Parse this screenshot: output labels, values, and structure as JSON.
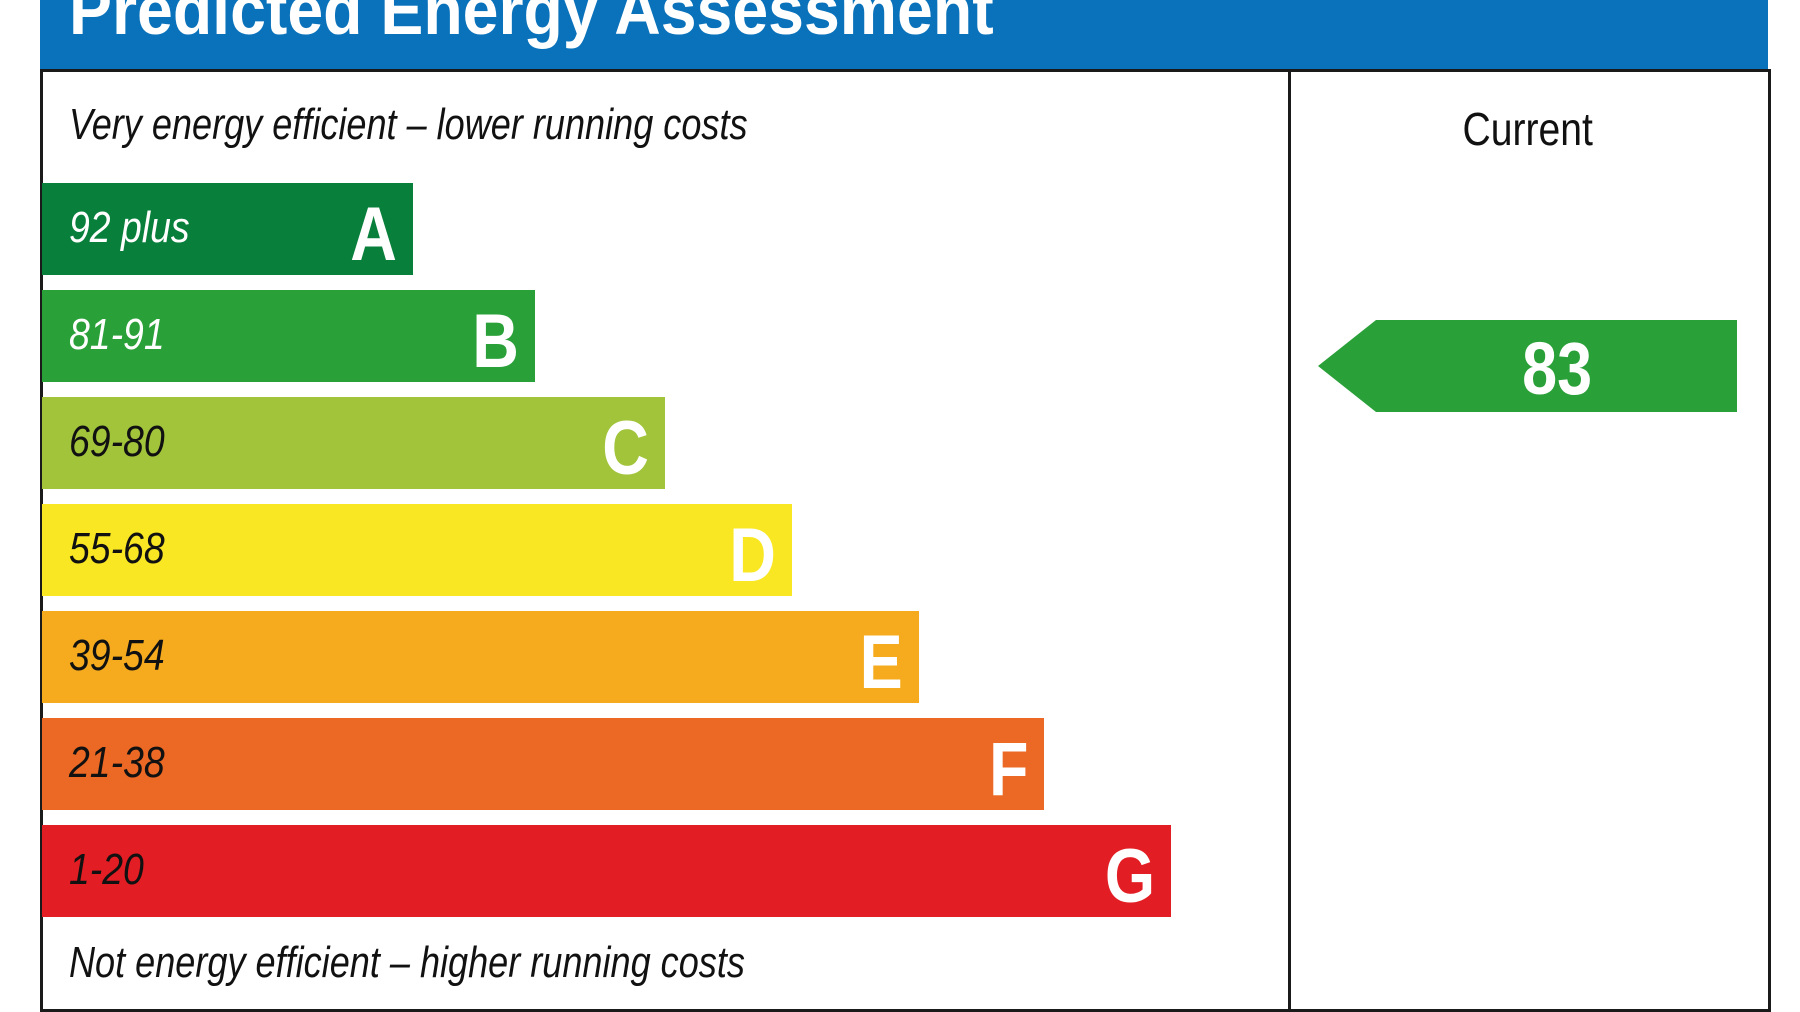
{
  "chart_data": {
    "type": "bar",
    "title": "Predicted Energy Assessment",
    "top_note": "Very energy efficient – lower running costs",
    "bottom_note": "Not energy efficient – higher running costs",
    "column_header": "Current",
    "bands": [
      {
        "letter": "A",
        "range": "92 plus",
        "color": "#087f3b",
        "text_color": "#ffffff"
      },
      {
        "letter": "B",
        "range": "81-91",
        "color": "#2aa039",
        "text_color": "#ffffff"
      },
      {
        "letter": "C",
        "range": "69-80",
        "color": "#a1c43b",
        "text_color": "#111111"
      },
      {
        "letter": "D",
        "range": "55-68",
        "color": "#f9e723",
        "text_color": "#111111"
      },
      {
        "letter": "E",
        "range": "39-54",
        "color": "#f6ab1e",
        "text_color": "#111111"
      },
      {
        "letter": "F",
        "range": "21-38",
        "color": "#eb6924",
        "text_color": "#111111"
      },
      {
        "letter": "G",
        "range": "1-20",
        "color": "#e21d24",
        "text_color": "#111111"
      }
    ],
    "current": {
      "value": "83",
      "band": "B",
      "color": "#2aa039"
    },
    "header_color": "#0a72ba"
  }
}
